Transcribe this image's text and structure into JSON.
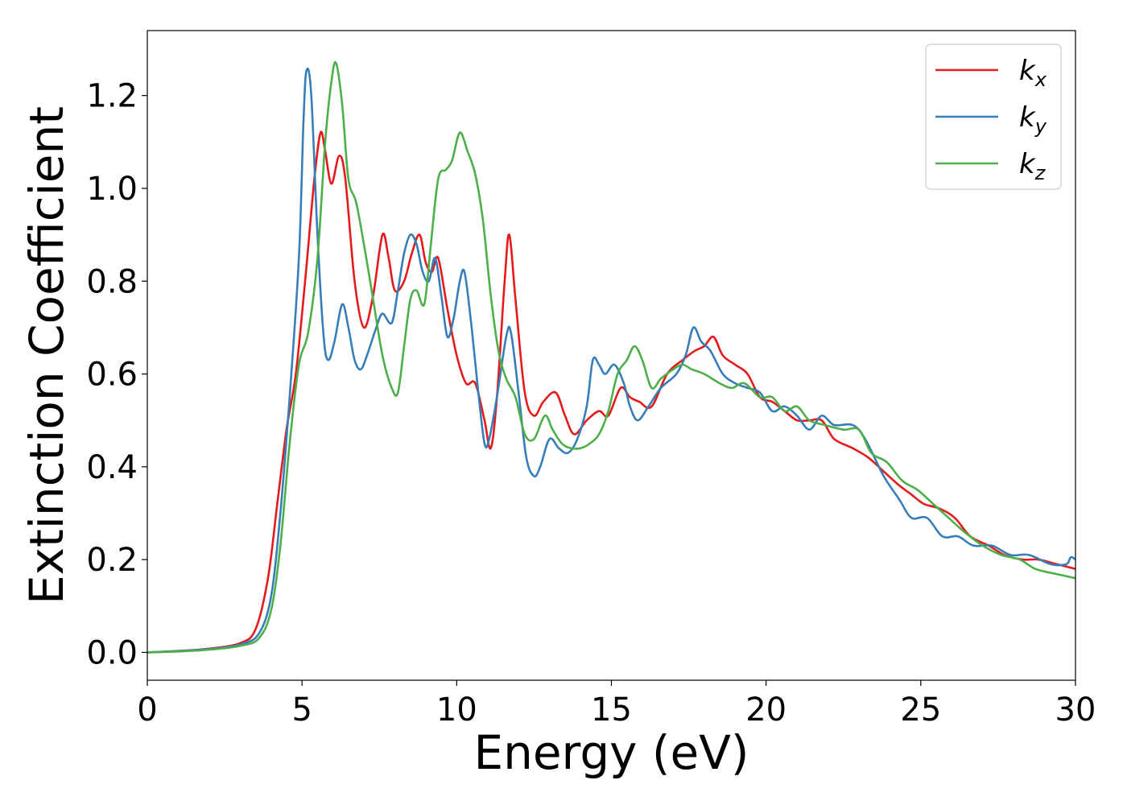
{
  "chart_data": {
    "type": "line",
    "xlabel": "Energy (eV)",
    "ylabel": "Extinction Coefficient",
    "xlim": [
      0,
      30
    ],
    "ylim": [
      -0.06,
      1.34
    ],
    "x_ticks": [
      "0",
      "5",
      "10",
      "15",
      "20",
      "25",
      "30"
    ],
    "y_ticks": [
      "0.0",
      "0.2",
      "0.4",
      "0.6",
      "0.8",
      "1.0",
      "1.2"
    ],
    "grid": false,
    "legend_position": "top-right",
    "series": [
      {
        "name": "k",
        "subscript": "x",
        "color": "#e41a1c",
        "points": [
          [
            0,
            0
          ],
          [
            1,
            0.003
          ],
          [
            2,
            0.008
          ],
          [
            3,
            0.02
          ],
          [
            3.5,
            0.05
          ],
          [
            3.9,
            0.16
          ],
          [
            4.2,
            0.32
          ],
          [
            4.5,
            0.48
          ],
          [
            4.8,
            0.6
          ],
          [
            5.1,
            0.8
          ],
          [
            5.4,
            1.02
          ],
          [
            5.6,
            1.12
          ],
          [
            5.75,
            1.08
          ],
          [
            5.95,
            1.01
          ],
          [
            6.2,
            1.07
          ],
          [
            6.4,
            1.02
          ],
          [
            6.7,
            0.8
          ],
          [
            7.0,
            0.7
          ],
          [
            7.3,
            0.77
          ],
          [
            7.6,
            0.9
          ],
          [
            7.8,
            0.85
          ],
          [
            8.0,
            0.78
          ],
          [
            8.3,
            0.8
          ],
          [
            8.55,
            0.86
          ],
          [
            8.8,
            0.9
          ],
          [
            9.0,
            0.84
          ],
          [
            9.2,
            0.82
          ],
          [
            9.4,
            0.85
          ],
          [
            9.7,
            0.74
          ],
          [
            10.0,
            0.64
          ],
          [
            10.3,
            0.58
          ],
          [
            10.6,
            0.58
          ],
          [
            10.9,
            0.5
          ],
          [
            11.1,
            0.44
          ],
          [
            11.3,
            0.55
          ],
          [
            11.55,
            0.8
          ],
          [
            11.7,
            0.9
          ],
          [
            11.9,
            0.76
          ],
          [
            12.2,
            0.56
          ],
          [
            12.5,
            0.51
          ],
          [
            12.8,
            0.54
          ],
          [
            13.2,
            0.56
          ],
          [
            13.5,
            0.51
          ],
          [
            13.8,
            0.47
          ],
          [
            14.2,
            0.5
          ],
          [
            14.6,
            0.52
          ],
          [
            14.9,
            0.51
          ],
          [
            15.3,
            0.57
          ],
          [
            15.6,
            0.55
          ],
          [
            15.9,
            0.54
          ],
          [
            16.3,
            0.53
          ],
          [
            16.8,
            0.6
          ],
          [
            17.3,
            0.63
          ],
          [
            17.7,
            0.65
          ],
          [
            18.0,
            0.66
          ],
          [
            18.3,
            0.68
          ],
          [
            18.6,
            0.64
          ],
          [
            19.0,
            0.62
          ],
          [
            19.4,
            0.6
          ],
          [
            19.8,
            0.55
          ],
          [
            20.2,
            0.54
          ],
          [
            20.6,
            0.52
          ],
          [
            21.0,
            0.5
          ],
          [
            21.4,
            0.5
          ],
          [
            21.8,
            0.5
          ],
          [
            22.2,
            0.46
          ],
          [
            22.8,
            0.44
          ],
          [
            23.3,
            0.42
          ],
          [
            23.8,
            0.39
          ],
          [
            24.3,
            0.36
          ],
          [
            24.7,
            0.34
          ],
          [
            25.1,
            0.32
          ],
          [
            25.6,
            0.31
          ],
          [
            26.1,
            0.29
          ],
          [
            26.6,
            0.25
          ],
          [
            27.2,
            0.23
          ],
          [
            27.7,
            0.21
          ],
          [
            28.3,
            0.2
          ],
          [
            28.8,
            0.2
          ],
          [
            29.4,
            0.19
          ],
          [
            30,
            0.18
          ]
        ]
      },
      {
        "name": "k",
        "subscript": "y",
        "color": "#377eb8",
        "points": [
          [
            0,
            0
          ],
          [
            1,
            0.003
          ],
          [
            2,
            0.007
          ],
          [
            3,
            0.017
          ],
          [
            3.6,
            0.04
          ],
          [
            4.0,
            0.12
          ],
          [
            4.3,
            0.3
          ],
          [
            4.6,
            0.55
          ],
          [
            4.9,
            0.85
          ],
          [
            5.05,
            1.15
          ],
          [
            5.15,
            1.255
          ],
          [
            5.3,
            1.2
          ],
          [
            5.5,
            0.9
          ],
          [
            5.7,
            0.68
          ],
          [
            5.85,
            0.63
          ],
          [
            6.05,
            0.67
          ],
          [
            6.3,
            0.75
          ],
          [
            6.5,
            0.7
          ],
          [
            6.7,
            0.63
          ],
          [
            6.9,
            0.61
          ],
          [
            7.1,
            0.64
          ],
          [
            7.4,
            0.7
          ],
          [
            7.6,
            0.73
          ],
          [
            7.9,
            0.71
          ],
          [
            8.1,
            0.78
          ],
          [
            8.3,
            0.86
          ],
          [
            8.5,
            0.9
          ],
          [
            8.7,
            0.88
          ],
          [
            8.9,
            0.82
          ],
          [
            9.1,
            0.8
          ],
          [
            9.3,
            0.85
          ],
          [
            9.5,
            0.77
          ],
          [
            9.7,
            0.68
          ],
          [
            9.9,
            0.72
          ],
          [
            10.1,
            0.8
          ],
          [
            10.25,
            0.82
          ],
          [
            10.45,
            0.72
          ],
          [
            10.7,
            0.56
          ],
          [
            10.9,
            0.45
          ],
          [
            11.05,
            0.46
          ],
          [
            11.3,
            0.55
          ],
          [
            11.6,
            0.68
          ],
          [
            11.75,
            0.69
          ],
          [
            12.0,
            0.56
          ],
          [
            12.25,
            0.42
          ],
          [
            12.5,
            0.38
          ],
          [
            12.7,
            0.4
          ],
          [
            13.0,
            0.46
          ],
          [
            13.3,
            0.44
          ],
          [
            13.6,
            0.43
          ],
          [
            13.9,
            0.46
          ],
          [
            14.2,
            0.53
          ],
          [
            14.4,
            0.63
          ],
          [
            14.6,
            0.62
          ],
          [
            14.8,
            0.6
          ],
          [
            15.1,
            0.62
          ],
          [
            15.4,
            0.58
          ],
          [
            15.6,
            0.53
          ],
          [
            15.85,
            0.5
          ],
          [
            16.2,
            0.53
          ],
          [
            16.6,
            0.57
          ],
          [
            17.1,
            0.6
          ],
          [
            17.4,
            0.64
          ],
          [
            17.65,
            0.7
          ],
          [
            17.9,
            0.67
          ],
          [
            18.2,
            0.65
          ],
          [
            18.6,
            0.6
          ],
          [
            19.0,
            0.58
          ],
          [
            19.4,
            0.57
          ],
          [
            19.8,
            0.56
          ],
          [
            20.2,
            0.52
          ],
          [
            20.6,
            0.53
          ],
          [
            21.0,
            0.51
          ],
          [
            21.4,
            0.48
          ],
          [
            21.8,
            0.51
          ],
          [
            22.2,
            0.49
          ],
          [
            22.8,
            0.49
          ],
          [
            23.2,
            0.46
          ],
          [
            23.8,
            0.38
          ],
          [
            24.3,
            0.33
          ],
          [
            24.7,
            0.29
          ],
          [
            25.2,
            0.29
          ],
          [
            25.7,
            0.25
          ],
          [
            26.2,
            0.25
          ],
          [
            26.7,
            0.23
          ],
          [
            27.3,
            0.23
          ],
          [
            27.9,
            0.21
          ],
          [
            28.5,
            0.21
          ],
          [
            29.2,
            0.19
          ],
          [
            29.7,
            0.19
          ],
          [
            29.85,
            0.205
          ],
          [
            30,
            0.2
          ]
        ]
      },
      {
        "name": "k",
        "subscript": "z",
        "color": "#4daf4a",
        "points": [
          [
            0,
            0
          ],
          [
            1,
            0.002
          ],
          [
            2,
            0.006
          ],
          [
            3,
            0.014
          ],
          [
            3.6,
            0.03
          ],
          [
            4.0,
            0.09
          ],
          [
            4.3,
            0.23
          ],
          [
            4.6,
            0.45
          ],
          [
            4.9,
            0.62
          ],
          [
            5.2,
            0.69
          ],
          [
            5.5,
            0.85
          ],
          [
            5.75,
            1.1
          ],
          [
            5.95,
            1.23
          ],
          [
            6.1,
            1.27
          ],
          [
            6.3,
            1.18
          ],
          [
            6.5,
            1.02
          ],
          [
            6.75,
            0.97
          ],
          [
            7.0,
            0.88
          ],
          [
            7.3,
            0.76
          ],
          [
            7.6,
            0.64
          ],
          [
            7.9,
            0.57
          ],
          [
            8.1,
            0.56
          ],
          [
            8.3,
            0.66
          ],
          [
            8.5,
            0.76
          ],
          [
            8.7,
            0.78
          ],
          [
            8.95,
            0.75
          ],
          [
            9.15,
            0.87
          ],
          [
            9.4,
            1.02
          ],
          [
            9.65,
            1.04
          ],
          [
            9.85,
            1.06
          ],
          [
            10.1,
            1.12
          ],
          [
            10.35,
            1.08
          ],
          [
            10.6,
            1.03
          ],
          [
            10.85,
            0.93
          ],
          [
            11.1,
            0.77
          ],
          [
            11.35,
            0.65
          ],
          [
            11.6,
            0.59
          ],
          [
            11.9,
            0.55
          ],
          [
            12.2,
            0.47
          ],
          [
            12.5,
            0.46
          ],
          [
            12.85,
            0.51
          ],
          [
            13.1,
            0.48
          ],
          [
            13.4,
            0.45
          ],
          [
            13.7,
            0.44
          ],
          [
            14.0,
            0.44
          ],
          [
            14.3,
            0.45
          ],
          [
            14.6,
            0.47
          ],
          [
            14.9,
            0.52
          ],
          [
            15.2,
            0.6
          ],
          [
            15.5,
            0.63
          ],
          [
            15.75,
            0.66
          ],
          [
            16.0,
            0.63
          ],
          [
            16.3,
            0.57
          ],
          [
            16.6,
            0.59
          ],
          [
            17.0,
            0.61
          ],
          [
            17.3,
            0.62
          ],
          [
            17.6,
            0.61
          ],
          [
            18.0,
            0.6
          ],
          [
            18.5,
            0.58
          ],
          [
            18.9,
            0.57
          ],
          [
            19.3,
            0.58
          ],
          [
            19.8,
            0.55
          ],
          [
            20.2,
            0.55
          ],
          [
            20.6,
            0.52
          ],
          [
            21.0,
            0.53
          ],
          [
            21.4,
            0.5
          ],
          [
            21.9,
            0.49
          ],
          [
            22.5,
            0.48
          ],
          [
            23.0,
            0.48
          ],
          [
            23.4,
            0.43
          ],
          [
            23.9,
            0.41
          ],
          [
            24.4,
            0.37
          ],
          [
            24.9,
            0.35
          ],
          [
            25.4,
            0.32
          ],
          [
            25.9,
            0.29
          ],
          [
            26.4,
            0.26
          ],
          [
            27.0,
            0.23
          ],
          [
            27.6,
            0.21
          ],
          [
            28.2,
            0.2
          ],
          [
            28.7,
            0.18
          ],
          [
            29.3,
            0.17
          ],
          [
            30,
            0.16
          ]
        ]
      }
    ]
  }
}
